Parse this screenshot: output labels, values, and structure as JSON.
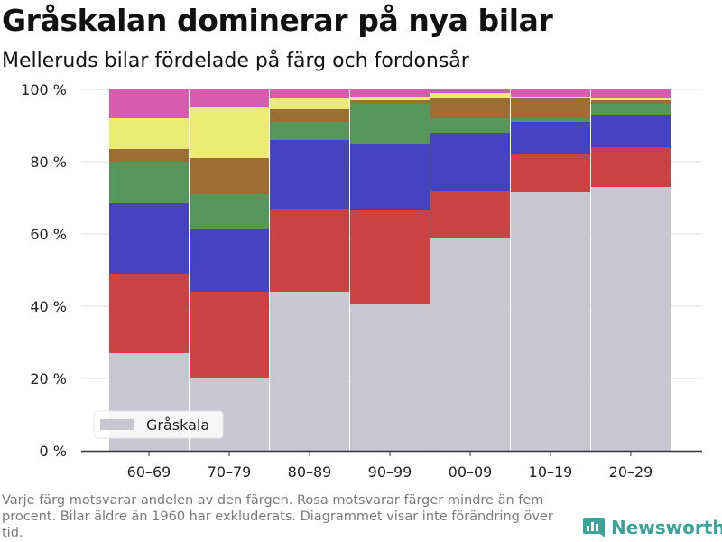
{
  "title": "Gråskalan dominerar på nya bilar",
  "subtitle": "Melleruds bilar fördelade på färg och fordonsår",
  "footnote": "Varje färg motsvarar andelen av den färgen. Rosa motsvarar färger mindre än fem procent. Bilar äldre än 1960 har exkluderats. Diagrammet visar inte förändring över tid.",
  "brand": {
    "name": "Newsworthy",
    "icon": "newsworthy-logo-icon",
    "color": "#3aa39a"
  },
  "chart_data": {
    "type": "bar",
    "stacked": true,
    "categories": [
      "60–69",
      "70–79",
      "80–89",
      "90–99",
      "00–09",
      "10–19",
      "20–29"
    ],
    "y_ticks": [
      0,
      20,
      40,
      60,
      80,
      100
    ],
    "y_tick_suffix": " %",
    "ylim": [
      0,
      100
    ],
    "grid": true,
    "legend": {
      "position": "bottom-left",
      "entries": [
        "Gråskala"
      ]
    },
    "series": [
      {
        "name": "Gråskala",
        "color": "#c8c7cf",
        "values": [
          27,
          20,
          44,
          40.5,
          59,
          71.5,
          73
        ]
      },
      {
        "color": "#cc4141",
        "values": [
          22,
          24,
          23,
          26,
          13,
          10.5,
          11
        ]
      },
      {
        "color": "#4444c2",
        "values": [
          19.5,
          17.5,
          19,
          18.5,
          16,
          9,
          9
        ]
      },
      {
        "color": "#57965a",
        "values": [
          11.5,
          9.5,
          5,
          11,
          4,
          1,
          3
        ]
      },
      {
        "color": "#9d6e34",
        "values": [
          3.5,
          10,
          3.5,
          1,
          5.5,
          5.5,
          1
        ]
      },
      {
        "color": "#ecec75",
        "values": [
          8.5,
          14,
          3,
          1,
          1.5,
          0.5,
          0.5
        ]
      },
      {
        "color": "#d65cb0",
        "values": [
          8,
          5,
          2.5,
          2,
          1,
          2,
          2.5
        ]
      }
    ]
  }
}
